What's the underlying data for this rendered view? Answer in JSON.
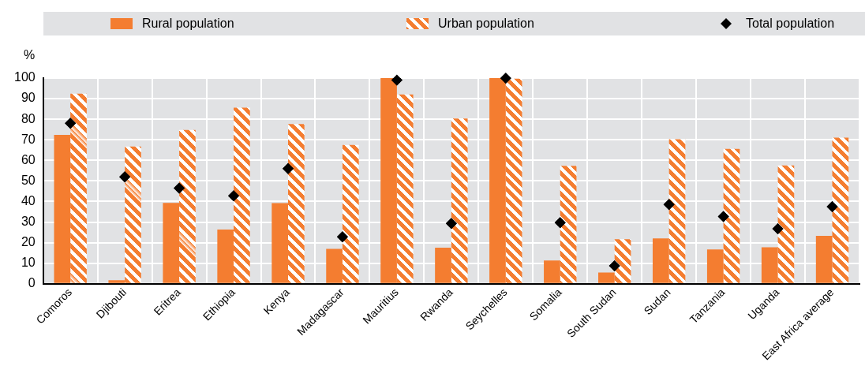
{
  "chart_data": {
    "type": "bar",
    "ylabel": "%",
    "categories": [
      "Comoros",
      "Djibouti",
      "Eritrea",
      "Ethiopia",
      "Kenya",
      "Madagascar",
      "Mauritius",
      "Rwanda",
      "Seychelles",
      "Somalia",
      "South Sudan",
      "Sudan",
      "Tanzania",
      "Uganda",
      "East Africa average"
    ],
    "series": [
      {
        "name": "Rural population",
        "color": "#f47d30",
        "values": [
          72.4,
          1.7,
          39.3,
          26.4,
          39.2,
          17,
          100,
          17.5,
          100,
          11.3,
          5.5,
          22,
          16.7,
          17.7,
          23.3
        ]
      },
      {
        "name": "Urban population",
        "color": "#f47d30",
        "values": [
          92.4,
          66.7,
          74.8,
          85.6,
          77.7,
          67.5,
          92,
          80.3,
          99.7,
          57.3,
          21.7,
          70.3,
          65.6,
          57.5,
          71
        ]
      },
      {
        "name": "Total population",
        "type": "scatter",
        "color": "#000000",
        "marker": "diamond",
        "x": [
          "Comoros",
          "Djibouti",
          "Eritrea",
          "Ethiopia",
          "Kenya",
          "Madagascar",
          "Mauritius",
          "Rwanda",
          "Seychelles",
          "Somalia",
          "South Sudan",
          "Sudan",
          "Tanzania",
          "Uganda",
          "East Africa average"
        ],
        "values": [
          78,
          52,
          46.5,
          42.8,
          56,
          22.8,
          99,
          29.3,
          100,
          29.7,
          8.7,
          38.5,
          32.7,
          26.7,
          37.5
        ]
      }
    ],
    "ylim": [
      0,
      100
    ],
    "yticks": [
      0,
      10,
      20,
      30,
      40,
      50,
      60,
      70,
      80,
      90,
      100
    ],
    "grid": true,
    "legend": "top"
  }
}
